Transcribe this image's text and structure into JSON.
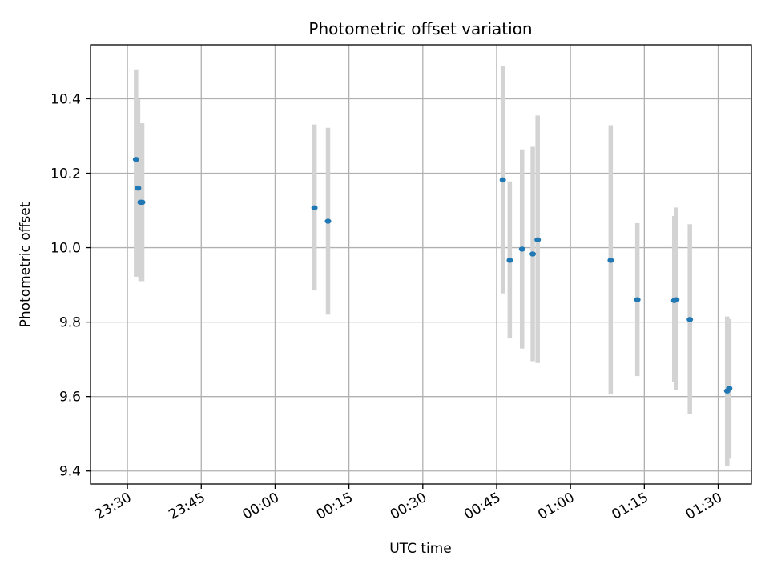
{
  "chart_data": {
    "type": "scatter",
    "title": "Photometric offset variation",
    "xlabel": "UTC time",
    "ylabel": "Photometric offset",
    "grid": true,
    "legend": "none",
    "colors": {
      "point": "#1f77b4",
      "errorbar": "#d3d3d3",
      "grid": "#b0b0b0"
    },
    "xlim": [
      "23:22:30",
      "01:36:45"
    ],
    "ylim": [
      9.365,
      10.545
    ],
    "x_ticks": [
      "23:30",
      "23:45",
      "00:00",
      "00:15",
      "00:30",
      "00:45",
      "01:00",
      "01:15",
      "01:30"
    ],
    "y_ticks": [
      "9.4",
      "9.6",
      "9.8",
      "10.0",
      "10.2",
      "10.4"
    ],
    "series": [
      {
        "points": [
          {
            "x": "23:31:45",
            "y": 10.237,
            "yerr_low": 9.922,
            "yerr_high": 10.479
          },
          {
            "x": "23:32:10",
            "y": 10.16,
            "yerr_low": 9.922,
            "yerr_high": 10.398
          },
          {
            "x": "23:32:40",
            "y": 10.122,
            "yerr_low": 9.91,
            "yerr_high": 10.334
          },
          {
            "x": "23:33:00",
            "y": 10.122,
            "yerr_low": 9.91,
            "yerr_high": 10.334
          },
          {
            "x": "00:08:00",
            "y": 10.107,
            "yerr_low": 9.885,
            "yerr_high": 10.331
          },
          {
            "x": "00:10:45",
            "y": 10.071,
            "yerr_low": 9.82,
            "yerr_high": 10.322
          },
          {
            "x": "00:46:15",
            "y": 10.182,
            "yerr_low": 9.877,
            "yerr_high": 10.489
          },
          {
            "x": "00:47:40",
            "y": 9.966,
            "yerr_low": 9.756,
            "yerr_high": 10.178
          },
          {
            "x": "00:50:10",
            "y": 9.996,
            "yerr_low": 9.729,
            "yerr_high": 10.264
          },
          {
            "x": "00:52:20",
            "y": 9.983,
            "yerr_low": 9.695,
            "yerr_high": 10.271
          },
          {
            "x": "00:53:20",
            "y": 10.021,
            "yerr_low": 9.69,
            "yerr_high": 10.355
          },
          {
            "x": "01:08:10",
            "y": 9.966,
            "yerr_low": 9.608,
            "yerr_high": 10.329
          },
          {
            "x": "01:13:35",
            "y": 9.86,
            "yerr_low": 9.655,
            "yerr_high": 10.066
          },
          {
            "x": "01:21:05",
            "y": 9.858,
            "yerr_low": 9.64,
            "yerr_high": 10.085
          },
          {
            "x": "01:21:30",
            "y": 9.86,
            "yerr_low": 9.618,
            "yerr_high": 10.108
          },
          {
            "x": "01:24:15",
            "y": 9.807,
            "yerr_low": 9.552,
            "yerr_high": 10.063
          },
          {
            "x": "01:31:50",
            "y": 9.615,
            "yerr_low": 9.414,
            "yerr_high": 9.815
          },
          {
            "x": "01:32:15",
            "y": 9.622,
            "yerr_low": 9.433,
            "yerr_high": 9.808
          }
        ]
      }
    ]
  }
}
